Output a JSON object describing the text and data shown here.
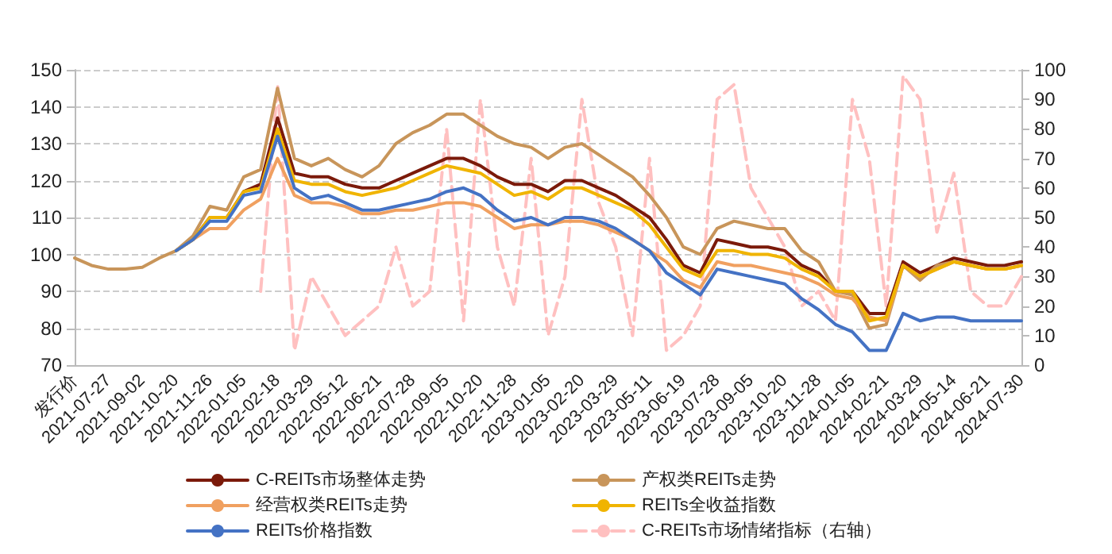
{
  "chart_data": {
    "type": "line",
    "categories": [
      "发行价",
      null,
      "2021-07-27",
      null,
      "2021-09-02",
      null,
      "2021-10-20",
      null,
      "2021-11-26",
      null,
      "2022-01-05",
      null,
      "2022-02-18",
      null,
      "2022-03-29",
      null,
      "2022-05-12",
      null,
      "2022-06-21",
      null,
      "2022-07-28",
      null,
      "2022-09-05",
      null,
      "2022-10-20",
      null,
      "2022-11-28",
      null,
      "2023-01-05",
      null,
      "2023-02-20",
      null,
      "2023-03-29",
      null,
      "2023-05-11",
      null,
      "2023-06-19",
      null,
      "2023-07-28",
      null,
      "2023-09-05",
      null,
      "2023-10-20",
      null,
      "2023-11-28",
      null,
      "2024-01-05",
      null,
      "2024-02-21",
      null,
      "2024-03-29",
      null,
      "2024-05-14",
      null,
      "2024-06-21",
      null,
      "2024-07-30"
    ],
    "series": [
      {
        "name": "C-REITs市场整体走势",
        "color": "#7b1a0a",
        "values": [
          null,
          null,
          null,
          null,
          null,
          null,
          101,
          104,
          110,
          110,
          117,
          119,
          137,
          122,
          121,
          121,
          119,
          118,
          118,
          120,
          122,
          124,
          126,
          126,
          124,
          121,
          119,
          119,
          117,
          120,
          120,
          118,
          116,
          113,
          110,
          104,
          97,
          95,
          104,
          103,
          102,
          102,
          101,
          97,
          95,
          90,
          90,
          84,
          84,
          98,
          95,
          97,
          99,
          98,
          97,
          97,
          98
        ]
      },
      {
        "name": "产权类REITs走势",
        "color": "#c8955a",
        "values": [
          99,
          97,
          96,
          96,
          96.5,
          99,
          101,
          105,
          113,
          112,
          121,
          123,
          145,
          126,
          124,
          126,
          123,
          121,
          124,
          130,
          133,
          135,
          138,
          138,
          135,
          132,
          130,
          129,
          126,
          129,
          130,
          127,
          124,
          121,
          116,
          110,
          102,
          100,
          107,
          109,
          108,
          107,
          107,
          101,
          98,
          90,
          89,
          80,
          81,
          97,
          93,
          97,
          98,
          97,
          96,
          96,
          97
        ]
      },
      {
        "name": "经营权类REITs走势",
        "color": "#f0a060",
        "values": [
          null,
          null,
          null,
          null,
          null,
          null,
          101,
          104,
          107,
          107,
          112,
          115,
          126,
          116,
          114,
          114,
          113,
          111,
          111,
          112,
          112,
          113,
          114,
          114,
          113,
          110,
          107,
          108,
          108,
          109,
          109,
          108,
          106,
          104,
          101,
          98,
          93,
          91,
          98,
          97,
          97,
          96,
          95,
          94,
          92,
          89,
          88,
          83,
          82,
          97,
          94,
          96,
          98,
          97,
          96,
          96,
          97
        ]
      },
      {
        "name": "REITs全收益指数",
        "color": "#f0b400",
        "values": [
          null,
          null,
          null,
          null,
          null,
          null,
          101,
          104,
          110,
          110,
          117,
          118,
          134,
          120,
          119,
          119,
          117,
          116,
          117,
          118,
          120,
          122,
          124,
          123,
          122,
          119,
          116,
          117,
          115,
          118,
          118,
          116,
          114,
          112,
          108,
          102,
          96,
          94,
          101,
          101,
          100,
          100,
          99,
          96,
          94,
          90,
          90,
          82,
          83,
          97,
          94,
          96,
          98,
          97,
          96,
          96,
          97
        ]
      },
      {
        "name": "REITs价格指数",
        "color": "#4472c4",
        "values": [
          null,
          null,
          null,
          null,
          null,
          null,
          101,
          104,
          109,
          109,
          116,
          117,
          132,
          118,
          115,
          116,
          114,
          112,
          112,
          113,
          114,
          115,
          117,
          118,
          116,
          112,
          109,
          110,
          108,
          110,
          110,
          109,
          107,
          104,
          101,
          95,
          92,
          89,
          96,
          95,
          94,
          93,
          92,
          88,
          85,
          81,
          79,
          74,
          74,
          84,
          82,
          83,
          83,
          82,
          82,
          82,
          82
        ]
      },
      {
        "name": "C-REITs市场情绪指标（右轴）",
        "color": "#ffc0c0",
        "axis": "y2",
        "line_style": "dashed",
        "values": [
          null,
          null,
          null,
          null,
          null,
          null,
          null,
          null,
          null,
          null,
          null,
          25,
          95,
          5,
          30,
          20,
          10,
          15,
          20,
          40,
          20,
          25,
          80,
          15,
          90,
          40,
          20,
          70,
          10,
          30,
          90,
          55,
          40,
          10,
          70,
          5,
          10,
          20,
          90,
          95,
          60,
          50,
          40,
          20,
          25,
          15,
          90,
          70,
          20,
          98,
          90,
          45,
          65,
          25,
          20,
          20,
          30
        ]
      }
    ],
    "ylim": [
      70,
      150
    ],
    "yticks": [
      70,
      80,
      90,
      100,
      110,
      120,
      130,
      140,
      150
    ],
    "y2lim": [
      0,
      100
    ],
    "y2ticks": [
      0,
      10,
      20,
      30,
      40,
      50,
      60,
      70,
      80,
      90,
      100
    ],
    "grid": "y",
    "legend": "bottom",
    "marker": "none",
    "line_style": "solid"
  }
}
